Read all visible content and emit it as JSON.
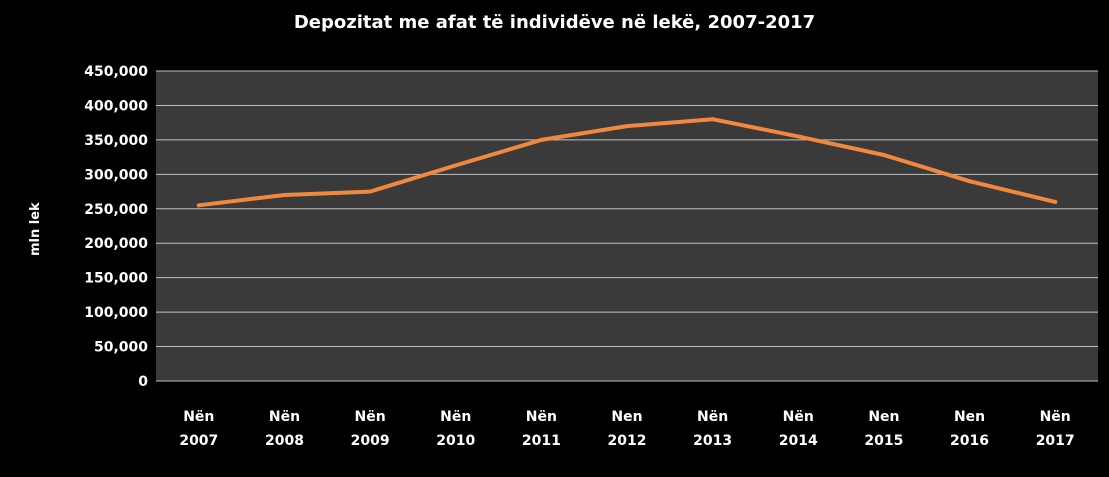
{
  "chart_data": {
    "type": "line",
    "title": "Depozitat me afat të individëve në lekë, 2007-2017",
    "xlabel": "",
    "ylabel": "mln lek",
    "categories": [
      [
        "Nën",
        "2007"
      ],
      [
        "Nën",
        "2008"
      ],
      [
        "Nën",
        "2009"
      ],
      [
        "Nën",
        "2010"
      ],
      [
        "Nën",
        "2011"
      ],
      [
        "Nen",
        "2012"
      ],
      [
        "Nën",
        "2013"
      ],
      [
        "Nën",
        "2014"
      ],
      [
        "Nen",
        "2015"
      ],
      [
        "Nen",
        "2016"
      ],
      [
        "Nën",
        "2017"
      ]
    ],
    "series": [
      {
        "name": "Depozitat me afat të individëve në lekë",
        "values": [
          255000,
          270000,
          275000,
          313000,
          350000,
          370000,
          380000,
          355000,
          328000,
          290000,
          260000
        ]
      }
    ],
    "ylim": [
      0,
      450000
    ],
    "yticks": [
      0,
      50000,
      100000,
      150000,
      200000,
      250000,
      300000,
      350000,
      400000,
      450000
    ],
    "ytick_labels": [
      "0",
      "50,000",
      "100,000",
      "150,000",
      "200,000",
      "250,000",
      "300,000",
      "350,000",
      "400,000",
      "450,000"
    ],
    "grid": true,
    "legend": "none",
    "colors": {
      "background": "#000000",
      "plot_area": "#3a3a3a",
      "gridline": "#bfbfbf",
      "line": "#f0883e",
      "text": "#ffffff"
    }
  }
}
